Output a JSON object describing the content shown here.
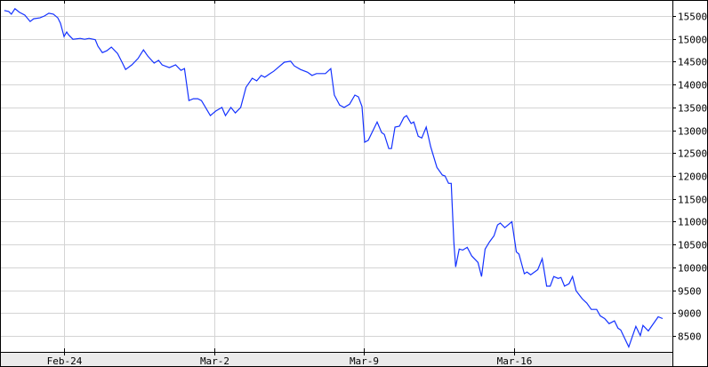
{
  "chart_data": {
    "type": "line",
    "title": "",
    "xlabel": "",
    "ylabel": "",
    "x_ticks": [
      "Feb-24",
      "Mar-2",
      "Mar-9",
      "Mar-16"
    ],
    "y_ticks": [
      8500,
      9000,
      9500,
      10000,
      10500,
      11000,
      11500,
      12000,
      12500,
      13000,
      13500,
      14000,
      14500,
      15000,
      15500
    ],
    "ylim": [
      8150,
      15850
    ],
    "y_axis_side": "right",
    "grid": true,
    "line_color": "#1432ff",
    "grid_color": "#d4d4d4",
    "series": [
      {
        "points": [
          [
            "Feb-21 05:00",
            15620
          ],
          [
            "Feb-21 10:00",
            15600
          ],
          [
            "Feb-21 13:00",
            15540
          ],
          [
            "Feb-21 17:00",
            15660
          ],
          [
            "Feb-21 22:00",
            15580
          ],
          [
            "Feb-22 04:00",
            15520
          ],
          [
            "Feb-22 10:00",
            15380
          ],
          [
            "Feb-22 14:00",
            15440
          ],
          [
            "Feb-22 21:00",
            15460
          ],
          [
            "Feb-23 02:00",
            15500
          ],
          [
            "Feb-23 07:00",
            15560
          ],
          [
            "Feb-23 12:00",
            15540
          ],
          [
            "Feb-23 17:00",
            15460
          ],
          [
            "Feb-23 20:00",
            15340
          ],
          [
            "Feb-24 00:00",
            15050
          ],
          [
            "Feb-24 03:00",
            15150
          ],
          [
            "Feb-24 05:00",
            15090
          ],
          [
            "Feb-24 10:00",
            14990
          ],
          [
            "Feb-24 18:00",
            15010
          ],
          [
            "Feb-24 23:00",
            14990
          ],
          [
            "Feb-25 04:00",
            15010
          ],
          [
            "Feb-25 11:00",
            14980
          ],
          [
            "Feb-25 14:00",
            14840
          ],
          [
            "Feb-25 19:00",
            14700
          ],
          [
            "Feb-26 00:00",
            14740
          ],
          [
            "Feb-26 05:00",
            14820
          ],
          [
            "Feb-26 12:00",
            14680
          ],
          [
            "Feb-26 17:00",
            14490
          ],
          [
            "Feb-26 21:00",
            14330
          ],
          [
            "Feb-27 04:00",
            14430
          ],
          [
            "Feb-27 11:00",
            14570
          ],
          [
            "Feb-27 17:00",
            14760
          ],
          [
            "Feb-27 22:00",
            14620
          ],
          [
            "Feb-28 05:00",
            14470
          ],
          [
            "Feb-28 10:00",
            14530
          ],
          [
            "Feb-28 14:00",
            14430
          ],
          [
            "Feb-28 22:00",
            14370
          ],
          [
            "Feb-29 05:00",
            14430
          ],
          [
            "Feb-29 11:00",
            14310
          ],
          [
            "Feb-29 15:00",
            14350
          ],
          [
            "Feb-29 20:00",
            13650
          ],
          [
            "Mar-1 01:00",
            13690
          ],
          [
            "Mar-1 06:00",
            13690
          ],
          [
            "Mar-1 10:00",
            13650
          ],
          [
            "Mar-1 14:00",
            13520
          ],
          [
            "Mar-1 20:00",
            13320
          ],
          [
            "Mar-2 02:00",
            13420
          ],
          [
            "Mar-2 09:00",
            13500
          ],
          [
            "Mar-2 13:00",
            13320
          ],
          [
            "Mar-2 19:00",
            13500
          ],
          [
            "Mar-3 00:00",
            13380
          ],
          [
            "Mar-3 06:00",
            13500
          ],
          [
            "Mar-3 12:00",
            13940
          ],
          [
            "Mar-3 19:00",
            14140
          ],
          [
            "Mar-4 00:00",
            14080
          ],
          [
            "Mar-4 05:00",
            14200
          ],
          [
            "Mar-4 09:00",
            14160
          ],
          [
            "Mar-4 15:00",
            14240
          ],
          [
            "Mar-4 19:00",
            14290
          ],
          [
            "Mar-5 01:00",
            14390
          ],
          [
            "Mar-5 07:00",
            14490
          ],
          [
            "Mar-5 14:00",
            14510
          ],
          [
            "Mar-5 18:00",
            14410
          ],
          [
            "Mar-6 01:00",
            14330
          ],
          [
            "Mar-6 09:00",
            14270
          ],
          [
            "Mar-6 14:00",
            14200
          ],
          [
            "Mar-6 19:00",
            14240
          ],
          [
            "Mar-7 05:00",
            14240
          ],
          [
            "Mar-7 11:00",
            14350
          ],
          [
            "Mar-7 15:00",
            13770
          ],
          [
            "Mar-7 21:00",
            13550
          ],
          [
            "Mar-8 02:00",
            13500
          ],
          [
            "Mar-8 08:00",
            13570
          ],
          [
            "Mar-8 14:00",
            13770
          ],
          [
            "Mar-8 18:00",
            13730
          ],
          [
            "Mar-8 22:00",
            13520
          ],
          [
            "Mar-9 01:00",
            12740
          ],
          [
            "Mar-9 05:00",
            12780
          ],
          [
            "Mar-9 15:00",
            13180
          ],
          [
            "Mar-9 20:00",
            12950
          ],
          [
            "Mar-9 23:00",
            12910
          ],
          [
            "Mar-10 04:00",
            12600
          ],
          [
            "Mar-10 07:00",
            12600
          ],
          [
            "Mar-10 11:00",
            13070
          ],
          [
            "Mar-10 16:00",
            13090
          ],
          [
            "Mar-10 21:00",
            13280
          ],
          [
            "Mar-11 00:00",
            13320
          ],
          [
            "Mar-11 05:00",
            13150
          ],
          [
            "Mar-11 08:00",
            13180
          ],
          [
            "Mar-11 13:00",
            12870
          ],
          [
            "Mar-11 17:00",
            12830
          ],
          [
            "Mar-11 22:00",
            13070
          ],
          [
            "Mar-12 03:00",
            12640
          ],
          [
            "Mar-12 10:00",
            12190
          ],
          [
            "Mar-12 16:00",
            12020
          ],
          [
            "Mar-12 19:00",
            12000
          ],
          [
            "Mar-12 23:00",
            11840
          ],
          [
            "Mar-13 02:00",
            11840
          ],
          [
            "Mar-13 05:00",
            10540
          ],
          [
            "Mar-13 07:00",
            10010
          ],
          [
            "Mar-13 11:00",
            10400
          ],
          [
            "Mar-13 15:00",
            10380
          ],
          [
            "Mar-13 20:00",
            10440
          ],
          [
            "Mar-14 01:00",
            10250
          ],
          [
            "Mar-14 08:00",
            10110
          ],
          [
            "Mar-14 12:00",
            9800
          ],
          [
            "Mar-14 16:00",
            10400
          ],
          [
            "Mar-14 21:00",
            10560
          ],
          [
            "Mar-15 02:00",
            10690
          ],
          [
            "Mar-15 06:00",
            10930
          ],
          [
            "Mar-15 09:00",
            10970
          ],
          [
            "Mar-15 14:00",
            10870
          ],
          [
            "Mar-15 22:00",
            11000
          ],
          [
            "Mar-16 03:00",
            10340
          ],
          [
            "Mar-16 06:00",
            10290
          ],
          [
            "Mar-16 12:00",
            9860
          ],
          [
            "Mar-16 15:00",
            9900
          ],
          [
            "Mar-16 19:00",
            9840
          ],
          [
            "Mar-17 03:00",
            9950
          ],
          [
            "Mar-17 08:00",
            10190
          ],
          [
            "Mar-17 13:00",
            9590
          ],
          [
            "Mar-17 17:00",
            9590
          ],
          [
            "Mar-17 21:00",
            9800
          ],
          [
            "Mar-18 02:00",
            9760
          ],
          [
            "Mar-18 05:00",
            9780
          ],
          [
            "Mar-18 09:00",
            9590
          ],
          [
            "Mar-18 14:00",
            9640
          ],
          [
            "Mar-18 18:00",
            9800
          ],
          [
            "Mar-18 22:00",
            9490
          ],
          [
            "Mar-19 05:00",
            9310
          ],
          [
            "Mar-19 10:00",
            9220
          ],
          [
            "Mar-19 15:00",
            9080
          ],
          [
            "Mar-19 21:00",
            9080
          ],
          [
            "Mar-20 01:00",
            8940
          ],
          [
            "Mar-20 06:00",
            8880
          ],
          [
            "Mar-20 11:00",
            8770
          ],
          [
            "Mar-20 17:00",
            8830
          ],
          [
            "Mar-20 21:00",
            8670
          ],
          [
            "Mar-21 00:00",
            8630
          ],
          [
            "Mar-21 09:00",
            8260
          ],
          [
            "Mar-21 17:00",
            8710
          ],
          [
            "Mar-21 22:00",
            8510
          ],
          [
            "Mar-22 01:00",
            8730
          ],
          [
            "Mar-22 07:00",
            8610
          ],
          [
            "Mar-22 18:00",
            8920
          ],
          [
            "Mar-22 23:00",
            8880
          ]
        ]
      }
    ]
  }
}
